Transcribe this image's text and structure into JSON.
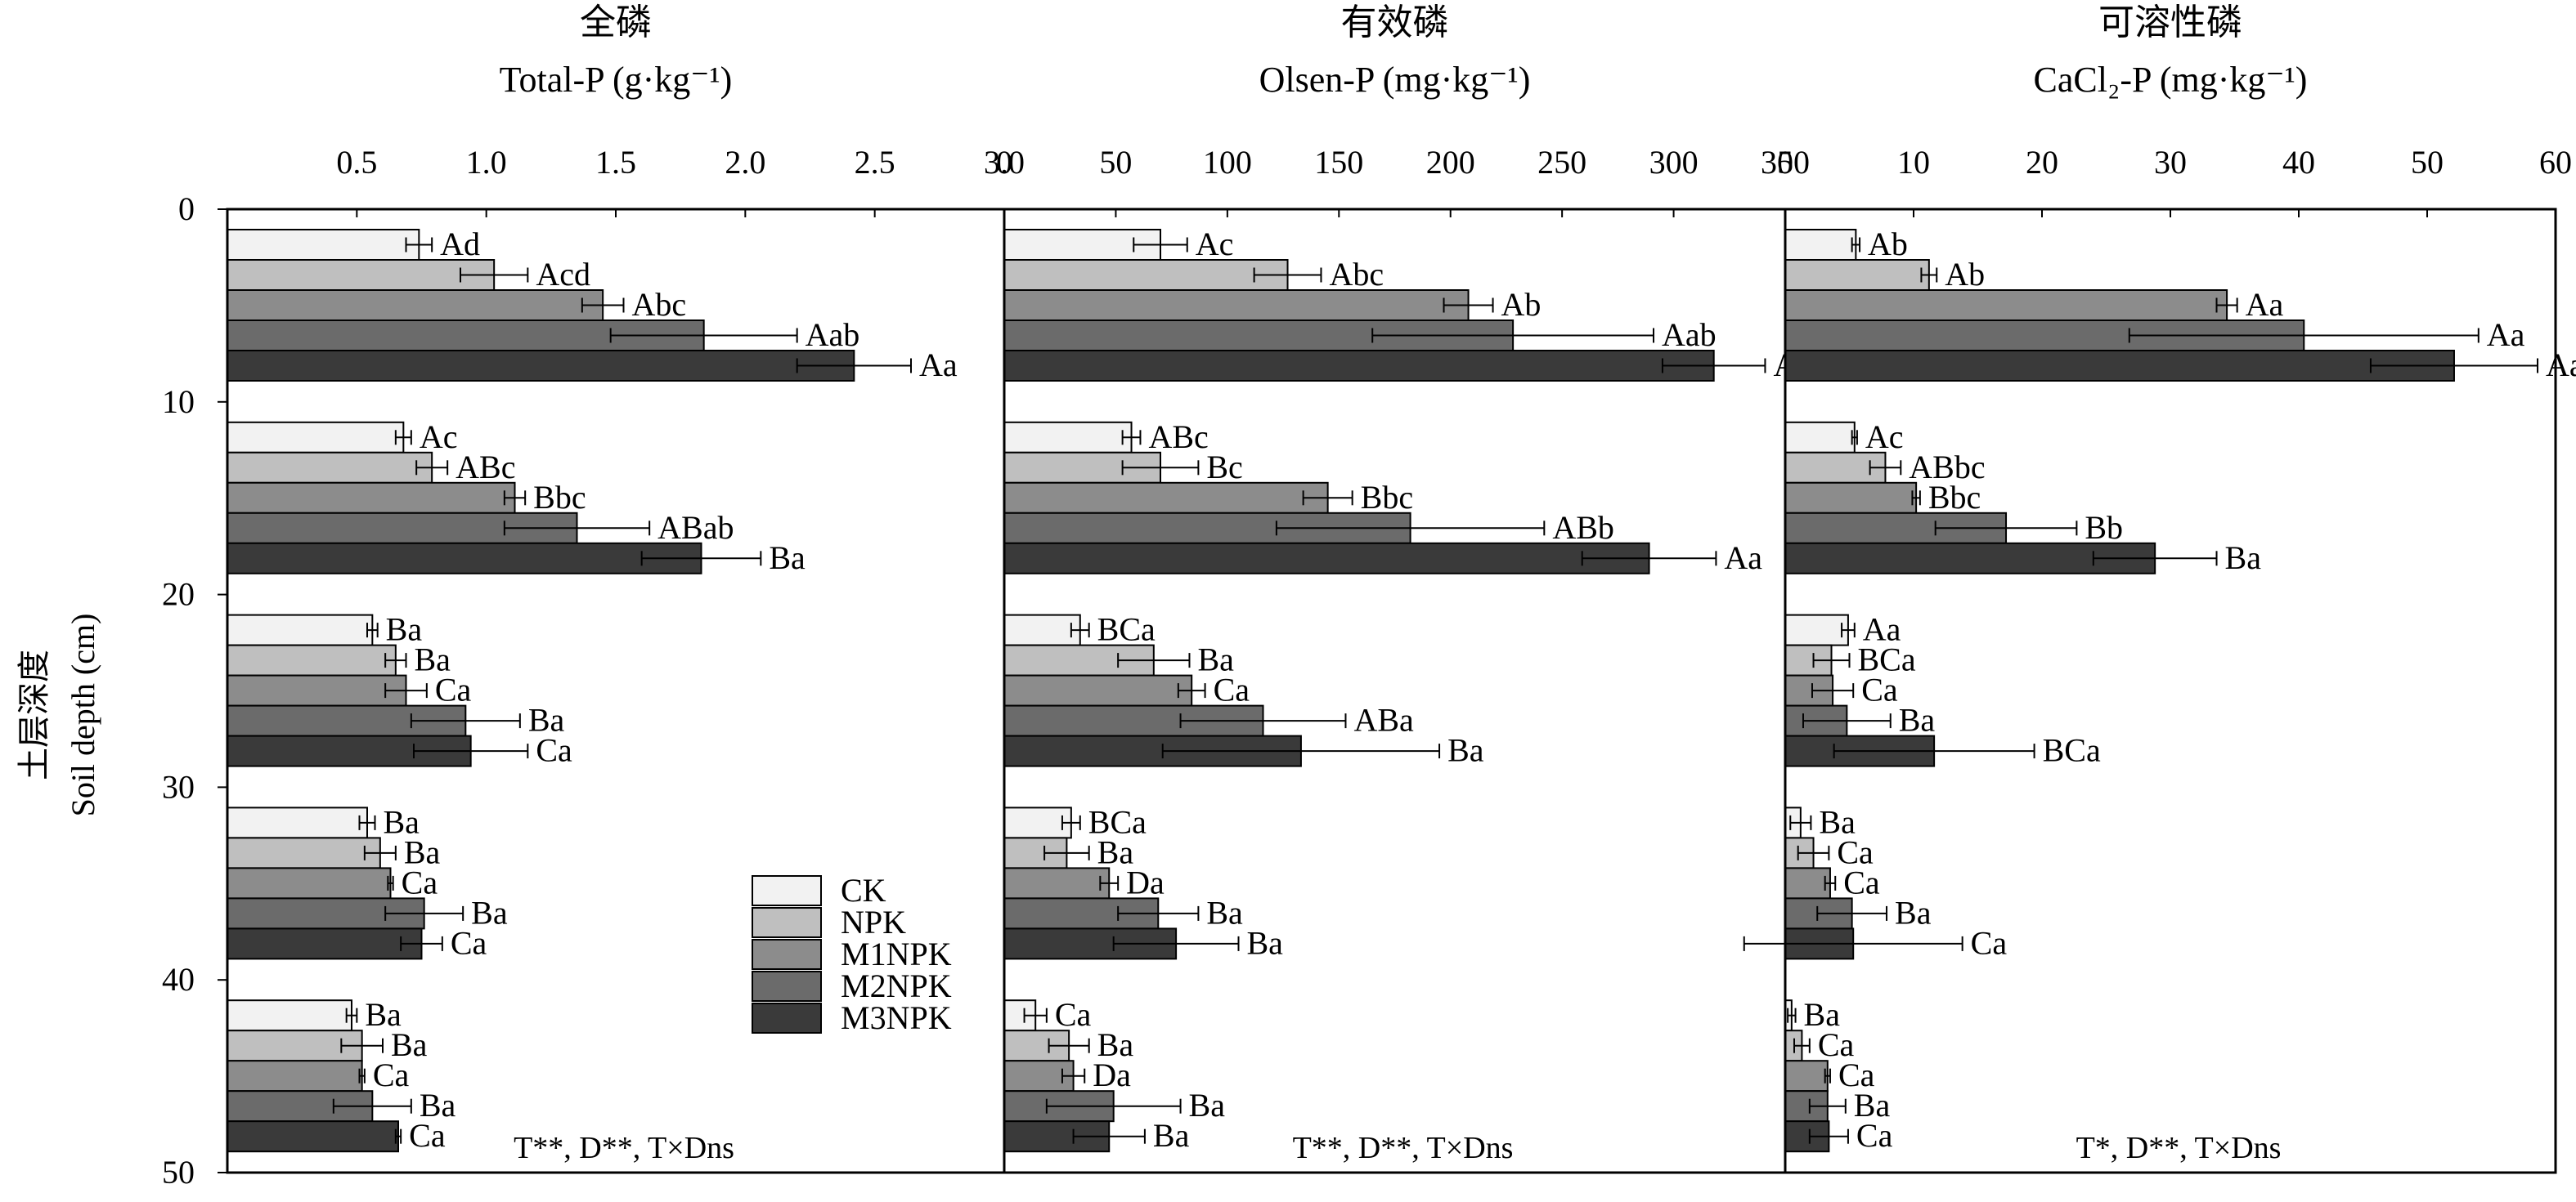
{
  "y_axis": {
    "label_zh": "土层深度",
    "label_en": "Soil depth (cm)",
    "ticks": [
      "0",
      "10",
      "20",
      "30",
      "40",
      "50"
    ],
    "ylim": [
      0,
      50
    ]
  },
  "legend": {
    "items": [
      {
        "label": "CK",
        "color": "#f2f2f2"
      },
      {
        "label": "NPK",
        "color": "#bfbfbf"
      },
      {
        "label": "M1NPK",
        "color": "#8c8c8c"
      },
      {
        "label": "M2NPK",
        "color": "#6b6b6b"
      },
      {
        "label": "M3NPK",
        "color": "#3a3a3a"
      }
    ],
    "placement": "bottom of first panel"
  },
  "chart_data": [
    {
      "type": "bar",
      "orientation": "horizontal",
      "title_zh": "全磷",
      "title_en": "Total-P (g·kg⁻¹)",
      "xlim": [
        0,
        3.0
      ],
      "x_ticks": [
        "0.5",
        "1.0",
        "1.5",
        "2.0",
        "2.5",
        "3.0"
      ],
      "depth_layers": [
        "0–10",
        "10–20",
        "20–30",
        "30–40",
        "40–50"
      ],
      "series_names": [
        "CK",
        "NPK",
        "M1NPK",
        "M2NPK",
        "M3NPK"
      ],
      "values": [
        [
          0.74,
          1.03,
          1.45,
          1.84,
          2.42
        ],
        [
          0.68,
          0.79,
          1.11,
          1.35,
          1.83
        ],
        [
          0.56,
          0.65,
          0.69,
          0.92,
          0.94
        ],
        [
          0.54,
          0.59,
          0.63,
          0.76,
          0.75
        ],
        [
          0.48,
          0.52,
          0.52,
          0.56,
          0.66
        ]
      ],
      "errors": [
        [
          0.05,
          0.13,
          0.08,
          0.36,
          0.22
        ],
        [
          0.03,
          0.06,
          0.04,
          0.28,
          0.23
        ],
        [
          0.02,
          0.04,
          0.08,
          0.21,
          0.22
        ],
        [
          0.03,
          0.06,
          0.01,
          0.15,
          0.08
        ],
        [
          0.02,
          0.08,
          0.01,
          0.15,
          0.01
        ]
      ],
      "labels": [
        [
          "Ad",
          "Acd",
          "Abc",
          "Aab",
          "Aa"
        ],
        [
          "Ac",
          "ABc",
          "Bbc",
          "ABab",
          "Ba"
        ],
        [
          "Ba",
          "Ba",
          "Ca",
          "Ba",
          "Ca"
        ],
        [
          "Ba",
          "Ba",
          "Ca",
          "Ba",
          "Ca"
        ],
        [
          "Ba",
          "Ba",
          "Ca",
          "Ba",
          "Ca"
        ]
      ],
      "significance": "T**, D**, T×Dns"
    },
    {
      "type": "bar",
      "orientation": "horizontal",
      "title_zh": "有效磷",
      "title_en": "Olsen-P (mg·kg⁻¹)",
      "xlim": [
        0,
        350
      ],
      "x_ticks": [
        "0",
        "50",
        "100",
        "150",
        "200",
        "250",
        "300",
        "350"
      ],
      "depth_layers": [
        "0–10",
        "10–20",
        "20–30",
        "30–40",
        "40–50"
      ],
      "series_names": [
        "CK",
        "NPK",
        "M1NPK",
        "M2NPK",
        "M3NPK"
      ],
      "values": [
        [
          70,
          127,
          208,
          228,
          318
        ],
        [
          57,
          70,
          145,
          182,
          289
        ],
        [
          34,
          67,
          84,
          116,
          133
        ],
        [
          30,
          28,
          47,
          69,
          77
        ],
        [
          14,
          29,
          31,
          49,
          47
        ]
      ],
      "errors": [
        [
          12,
          15,
          11,
          63,
          23
        ],
        [
          4,
          17,
          11,
          60,
          30
        ],
        [
          4,
          16,
          6,
          37,
          62
        ],
        [
          4,
          10,
          4,
          18,
          28
        ],
        [
          5,
          9,
          5,
          30,
          16
        ]
      ],
      "labels": [
        [
          "Ac",
          "Abc",
          "Ab",
          "Aab",
          "Aa"
        ],
        [
          "ABc",
          "Bc",
          "Bbc",
          "ABb",
          "Aa"
        ],
        [
          "BCa",
          "Ba",
          "Ca",
          "ABa",
          "Ba"
        ],
        [
          "BCa",
          "Ba",
          "Da",
          "Ba",
          "Ba"
        ],
        [
          "Ca",
          "Ba",
          "Da",
          "Ba",
          "Ba"
        ]
      ],
      "significance": "T**, D**, T×Dns"
    },
    {
      "type": "bar",
      "orientation": "horizontal",
      "title_zh": "可溶性磷",
      "title_en": "CaCl₂-P (mg·kg⁻¹)",
      "xlim": [
        0,
        60
      ],
      "x_ticks": [
        "0",
        "10",
        "20",
        "30",
        "40",
        "50",
        "60"
      ],
      "depth_layers": [
        "0–10",
        "10–20",
        "20–30",
        "30–40",
        "40–50"
      ],
      "series_names": [
        "CK",
        "NPK",
        "M1NPK",
        "M2NPK",
        "M3NPK"
      ],
      "values": [
        [
          5.5,
          11.2,
          34.4,
          40.4,
          52.1
        ],
        [
          5.4,
          7.8,
          10.2,
          17.2,
          28.8
        ],
        [
          4.9,
          3.6,
          3.7,
          4.8,
          11.6
        ],
        [
          1.2,
          2.2,
          3.5,
          5.2,
          5.3
        ],
        [
          0.5,
          1.3,
          3.3,
          3.3,
          3.4
        ]
      ],
      "errors": [
        [
          0.3,
          0.6,
          0.8,
          13.6,
          6.5
        ],
        [
          0.2,
          1.2,
          0.3,
          5.5,
          4.8
        ],
        [
          0.5,
          1.4,
          1.6,
          3.4,
          7.8
        ],
        [
          0.8,
          1.2,
          0.4,
          2.7,
          8.5
        ],
        [
          0.3,
          0.6,
          0.2,
          1.4,
          1.5
        ]
      ],
      "labels": [
        [
          "Ab",
          "Ab",
          "Aa",
          "Aa",
          "Aa"
        ],
        [
          "Ac",
          "ABbc",
          "Bbc",
          "Bb",
          "Ba"
        ],
        [
          "Aa",
          "BCa",
          "Ca",
          "Ba",
          "BCa"
        ],
        [
          "Ba",
          "Ca",
          "Ca",
          "Ba",
          "Ca"
        ],
        [
          "Ba",
          "Ca",
          "Ca",
          "Ba",
          "Ca"
        ]
      ],
      "significance": "T*, D**, T×Dns"
    }
  ]
}
